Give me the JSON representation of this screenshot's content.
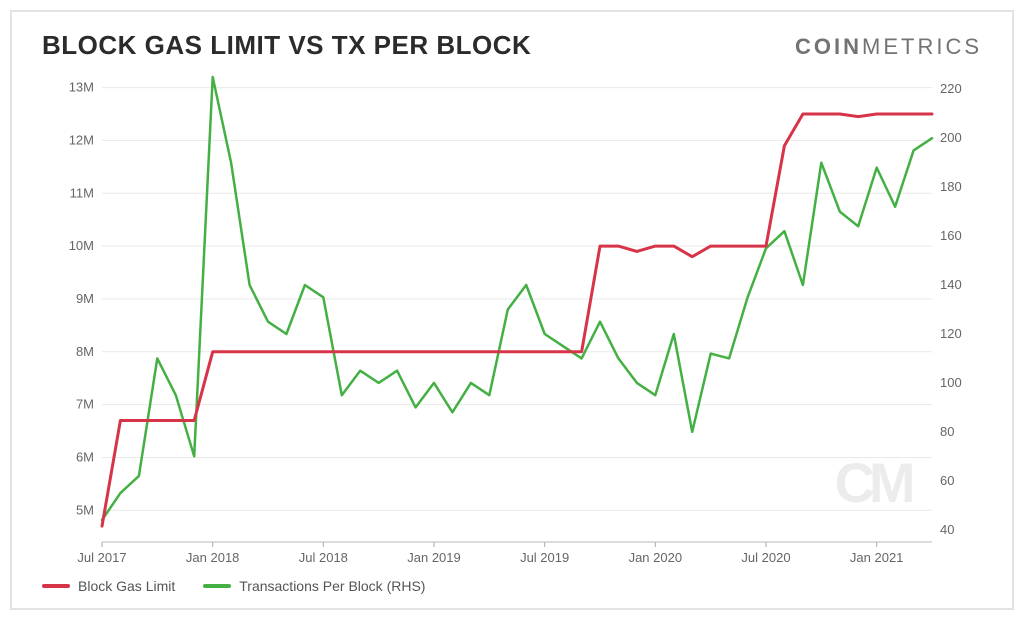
{
  "title": "BLOCK GAS LIMIT VS TX PER BLOCK",
  "brand_bold": "COIN",
  "brand_thin": "METRICS",
  "watermark": "CM",
  "legend": {
    "series1": {
      "label": "Block Gas Limit",
      "color": "#d73449"
    },
    "series2": {
      "label": "Transactions Per Block (RHS)",
      "color": "#44b044"
    }
  },
  "chart": {
    "type": "line-dual-axis",
    "background_color": "#ffffff",
    "grid_color": "#e9e9e9",
    "axis_text_color": "#666666",
    "label_fontsize": 13,
    "x": {
      "domain_index": [
        0,
        45
      ],
      "tick_indices": [
        0,
        6,
        12,
        18,
        24,
        30,
        36,
        42
      ],
      "tick_labels": [
        "Jul 2017",
        "Jan 2018",
        "Jul 2018",
        "Jan 2019",
        "Jul 2019",
        "Jan 2020",
        "Jul 2020",
        "Jan 2021"
      ]
    },
    "y_left": {
      "min": 4.4,
      "max": 13.2,
      "ticks": [
        5,
        6,
        7,
        8,
        9,
        10,
        11,
        12,
        13
      ],
      "tick_labels": [
        "5M",
        "6M",
        "7M",
        "8M",
        "9M",
        "10M",
        "11M",
        "12M",
        "13M"
      ]
    },
    "y_right": {
      "min": 35,
      "max": 225,
      "ticks": [
        40,
        60,
        80,
        100,
        120,
        140,
        160,
        180,
        200,
        220
      ],
      "tick_labels": [
        "40",
        "60",
        "80",
        "100",
        "120",
        "140",
        "160",
        "180",
        "200",
        "220"
      ]
    },
    "series": {
      "gas_limit": {
        "axis": "left",
        "color": "#d73449",
        "line_width": 3,
        "values": [
          4.7,
          6.7,
          6.7,
          6.7,
          6.7,
          6.7,
          8.0,
          8.0,
          8.0,
          8.0,
          8.0,
          8.0,
          8.0,
          8.0,
          8.0,
          8.0,
          8.0,
          8.0,
          8.0,
          8.0,
          8.0,
          8.0,
          8.0,
          8.0,
          8.0,
          8.0,
          8.0,
          10.0,
          10.0,
          9.9,
          10.0,
          10.0,
          9.8,
          10.0,
          10.0,
          10.0,
          10.0,
          11.9,
          12.5,
          12.5,
          12.5,
          12.45,
          12.5,
          12.5,
          12.5,
          12.5
        ]
      },
      "tx_per_block": {
        "axis": "right",
        "color": "#44b044",
        "line_width": 2.5,
        "values": [
          44,
          55,
          62,
          110,
          95,
          70,
          225,
          190,
          140,
          125,
          120,
          140,
          135,
          95,
          105,
          100,
          105,
          90,
          100,
          88,
          100,
          95,
          130,
          140,
          120,
          115,
          110,
          125,
          110,
          100,
          95,
          120,
          80,
          112,
          110,
          135,
          155,
          162,
          140,
          190,
          170,
          164,
          188,
          172,
          195,
          200
        ]
      }
    }
  }
}
